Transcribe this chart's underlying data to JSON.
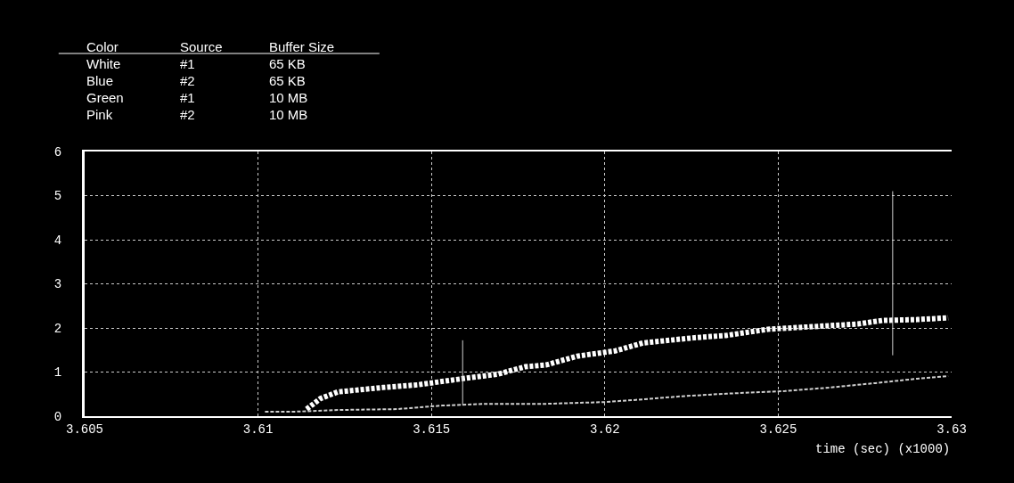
{
  "chart_data": {
    "type": "line",
    "xlabel": "time (sec) (x1000)",
    "annotations": [
      "Color",
      "Source",
      "Buffer Size",
      "White",
      "#1",
      "65 KB",
      "Blue",
      "#2",
      "65 KB",
      "Green",
      "#1",
      "10 MB",
      "Pink",
      "#2",
      "10 MB"
    ],
    "series": [
      {
        "color": "#ffffff",
        "line_style": "dashed",
        "x": [
          3.6114,
          3.6118,
          3.6123,
          3.6136,
          3.6146,
          3.6157,
          3.6165,
          3.6169,
          3.6177,
          3.6183,
          3.6192,
          3.6203,
          3.6211,
          3.6226,
          3.6235,
          3.6247,
          3.626,
          3.6273,
          3.628,
          3.629,
          3.6299
        ],
        "values": [
          0.16,
          0.4,
          0.55,
          0.65,
          0.71,
          0.83,
          0.91,
          0.95,
          1.12,
          1.16,
          1.36,
          1.48,
          1.66,
          1.78,
          1.83,
          1.97,
          2.03,
          2.09,
          2.17,
          2.19,
          2.23
        ]
      },
      {
        "color": "#d0d0d0",
        "line_style": "dashed",
        "x": [
          3.6102,
          3.611,
          3.6123,
          3.614,
          3.6153,
          3.6166,
          3.6183,
          3.62,
          3.6209,
          3.6222,
          3.6235,
          3.6252,
          3.6265,
          3.6278,
          3.629,
          3.6299
        ],
        "values": [
          0.1,
          0.1,
          0.14,
          0.16,
          0.24,
          0.28,
          0.28,
          0.32,
          0.37,
          0.45,
          0.51,
          0.57,
          0.65,
          0.75,
          0.85,
          0.91
        ]
      },
      {
        "color": "#d0d0d0",
        "line_style": "solid",
        "x": [
          3.6159,
          3.6159
        ],
        "values": [
          0.25,
          1.72
        ]
      },
      {
        "color": "#d0d0d0",
        "line_style": "solid",
        "x": [
          3.6283,
          3.6283
        ],
        "values": [
          1.38,
          5.1
        ]
      }
    ],
    "xlim": [
      3.605,
      3.63
    ],
    "ylim": [
      0,
      6
    ],
    "xticks": [
      3.605,
      3.61,
      3.615,
      3.62,
      3.625,
      3.63
    ],
    "yticks": [
      0,
      1,
      2,
      3,
      4,
      5,
      6
    ],
    "grid": true,
    "legend": false
  }
}
